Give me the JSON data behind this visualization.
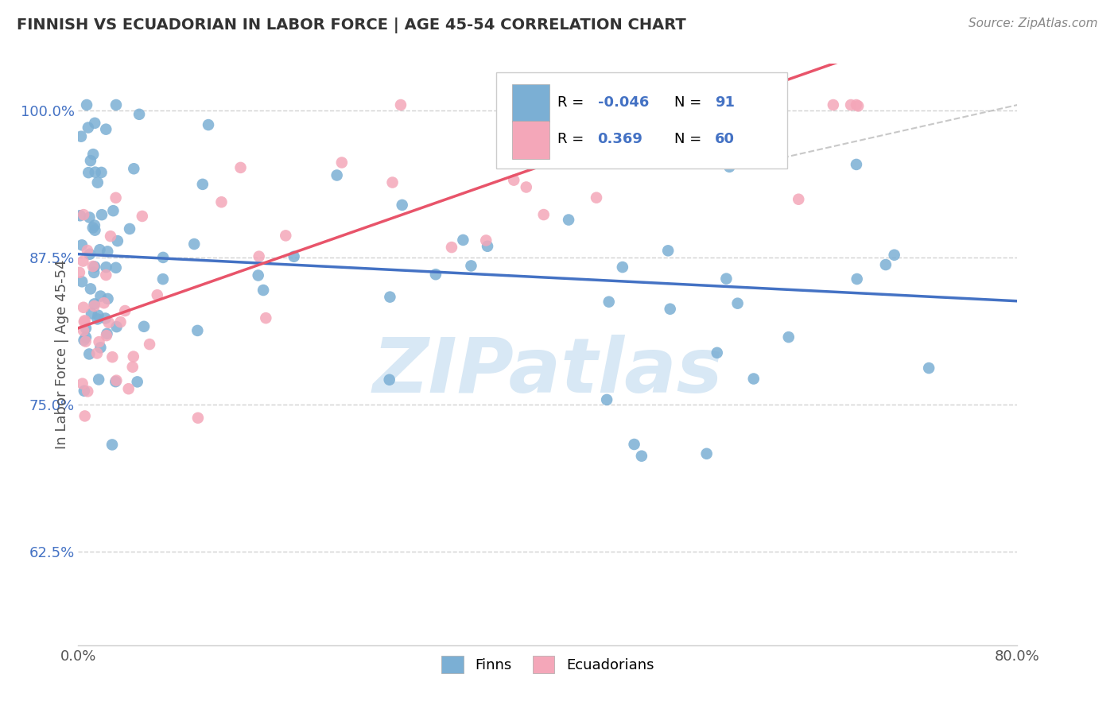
{
  "title": "FINNISH VS ECUADORIAN IN LABOR FORCE | AGE 45-54 CORRELATION CHART",
  "source_text": "Source: ZipAtlas.com",
  "ylabel": "In Labor Force | Age 45-54",
  "r_finn": -0.046,
  "n_finn": 91,
  "r_ecua": 0.369,
  "n_ecua": 60,
  "x_min": 0.0,
  "x_max": 0.8,
  "y_min": 0.545,
  "y_max": 1.04,
  "ytick_positions": [
    0.625,
    0.75,
    0.875,
    1.0
  ],
  "ytick_labels": [
    "62.5%",
    "75.0%",
    "87.5%",
    "100.0%"
  ],
  "xtick_positions": [
    0.0,
    0.8
  ],
  "xtick_labels": [
    "0.0%",
    "80.0%"
  ],
  "color_finn": "#7bafd4",
  "color_ecua": "#f4a7b9",
  "line_color_finn": "#4472c4",
  "line_color_ecua": "#e8546a",
  "watermark_color": "#d8e8f5",
  "title_color": "#333333",
  "axis_label_color": "#555555",
  "tick_label_color_y": "#4472c4",
  "tick_label_color_x": "#555555",
  "background_color": "#ffffff",
  "legend_r_color_finn": "#e8546a",
  "legend_r_color_ecua": "#4472c4"
}
